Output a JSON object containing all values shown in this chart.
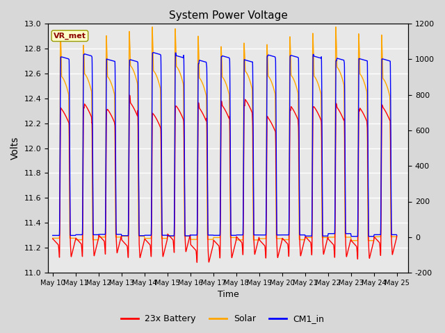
{
  "title": "System Power Voltage",
  "xlabel": "Time",
  "ylabel_left": "Volts",
  "ylabel_right": "",
  "ylim_left": [
    11.0,
    13.0
  ],
  "ylim_right": [
    -200,
    1200
  ],
  "n_days": 15,
  "x_tick_labels": [
    "May 10",
    "May 11",
    "May 12",
    "May 13",
    "May 14",
    "May 15",
    "May 16",
    "May 17",
    "May 18",
    "May 19",
    "May 20",
    "May 21",
    "May 22",
    "May 23",
    "May 24",
    "May 25"
  ],
  "yticks_left": [
    11.0,
    11.2,
    11.4,
    11.6,
    11.8,
    12.0,
    12.2,
    12.4,
    12.6,
    12.8,
    13.0
  ],
  "yticks_right": [
    -200,
    0,
    200,
    400,
    600,
    800,
    1000,
    1200
  ],
  "fig_bg_color": "#d8d8d8",
  "plot_bg_color": "#e8e8e8",
  "grid_color": "white",
  "annotation_text": "VR_met",
  "annotation_bg": "#ffffcc",
  "annotation_border": "#999900",
  "legend_entries": [
    "23x Battery",
    "Solar",
    "CM1_in"
  ],
  "legend_colors": [
    "red",
    "orange",
    "blue"
  ],
  "line_battery_color": "red",
  "line_solar_color": "orange",
  "line_cm1_color": "blue",
  "line_width": 1.0
}
